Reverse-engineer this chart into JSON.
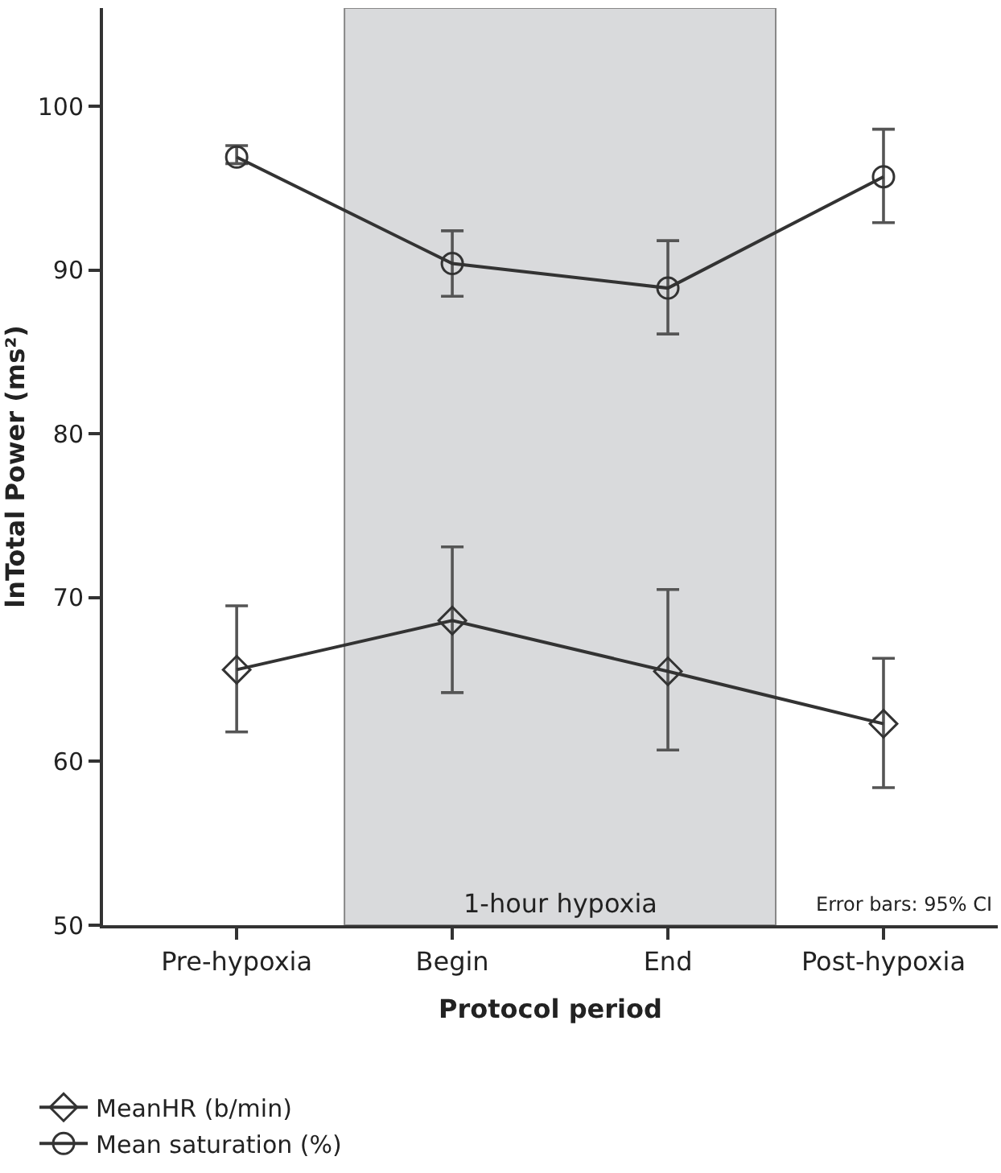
{
  "chart_data": {
    "type": "line",
    "xlabel": "Protocol period",
    "ylabel": "lnTotal Power (ms²)",
    "categories": [
      "Pre-hypoxia",
      "Begin",
      "End",
      "Post-hypoxia"
    ],
    "series": [
      {
        "name": "MeanHR (b/min)",
        "color": "#333333",
        "marker": "diamond",
        "values": [
          65.6,
          68.6,
          65.5,
          62.3
        ],
        "errors": [
          [
            61.8,
            69.5
          ],
          [
            64.2,
            73.1
          ],
          [
            60.7,
            70.5
          ],
          [
            58.4,
            66.3
          ]
        ]
      },
      {
        "name": "Mean saturation (%)",
        "color": "#333333",
        "marker": "circle",
        "values": [
          96.9,
          90.4,
          88.9,
          95.7
        ],
        "errors": [
          [
            96.5,
            97.6
          ],
          [
            88.4,
            92.4
          ],
          [
            86.1,
            91.8
          ],
          [
            92.9,
            98.6
          ]
        ]
      }
    ],
    "ylim": [
      50,
      106
    ],
    "yticks": [
      50,
      60,
      70,
      80,
      90,
      100
    ],
    "bands": [
      {
        "axis": "x",
        "from": "Begin",
        "to": "End",
        "label": "1-hour hypoxia",
        "color": "#d9dadc"
      }
    ],
    "annotations": [
      "Error bars: 95% CI"
    ],
    "grid": false,
    "legend": "bottom left",
    "line_style": "solid"
  }
}
